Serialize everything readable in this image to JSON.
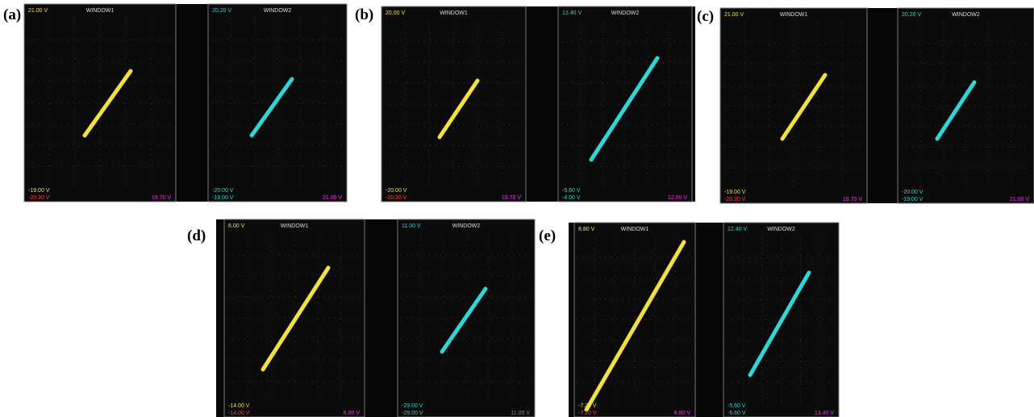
{
  "panels": [
    {
      "label": "(a)",
      "windows": [
        {
          "top_value": "21.00 V",
          "title": "WINDOW1",
          "bottom_value": "-19.00 V",
          "x_min": "-20.30 V",
          "x_max": "19.70 V"
        },
        {
          "top_value": "20.20 V",
          "title": "WINDOW2",
          "bottom_value": "-20.00 V",
          "x_min": "-19.00 V",
          "x_max": "21.00 V"
        }
      ]
    },
    {
      "label": "(b)",
      "windows": [
        {
          "top_value": "20.00 V",
          "title": "WINDOW1",
          "bottom_value": "-20.00 V",
          "x_min": "-20.30 V",
          "x_max": "19.70 V"
        },
        {
          "top_value": "12.40 V",
          "title": "WINDOW2",
          "bottom_value": "-5.60 V",
          "x_min": "-4.00 V",
          "x_max": "12.00 V"
        }
      ]
    },
    {
      "label": "(c)",
      "windows": [
        {
          "top_value": "21.00 V",
          "title": "WINDOW1",
          "bottom_value": "-19.00 V",
          "x_min": "-20.30 V",
          "x_max": "19.70 V"
        },
        {
          "top_value": "20.20 V",
          "title": "WINDOW2",
          "bottom_value": "-20.00 V",
          "x_min": "-19.00 V",
          "x_max": "21.00 V"
        }
      ]
    },
    {
      "label": "(d)",
      "windows": [
        {
          "top_value": "6.00 V",
          "title": "WINDOW1",
          "bottom_value": "-14.00 V",
          "x_min": "-14.00 V",
          "x_max": "6.00 V"
        },
        {
          "top_value": "11.00 V",
          "title": "WINDOW2",
          "bottom_value": "-29.00 V",
          "x_min": "-29.00 V",
          "x_max": "11.00 V"
        }
      ]
    },
    {
      "label": "(e)",
      "windows": [
        {
          "top_value": "8.80 V",
          "title": "WINDOW1",
          "bottom_value": "-7.20 V",
          "x_min": "-7.20 V",
          "x_max": "8.80 V"
        },
        {
          "top_value": "12.40 V",
          "title": "WINDOW2",
          "bottom_value": "-5.60 V",
          "x_min": "-5.60 V",
          "x_max": "13.40 V"
        }
      ]
    }
  ]
}
